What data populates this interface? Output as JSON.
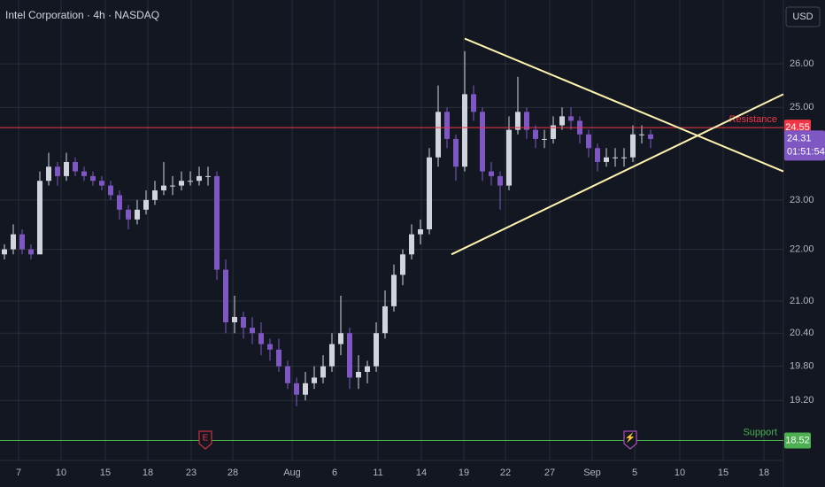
{
  "chart_data": {
    "type": "candlestick",
    "title": "Intel Corporation · 4h · NASDAQ",
    "currency": "USD",
    "log_scale": true,
    "grid": true,
    "up_color": "#d1d4dc",
    "down_color": "#7e57c2",
    "xlim": [
      0,
      88.5
    ],
    "xticks": [
      {
        "value": 2.1,
        "label": "7"
      },
      {
        "value": 6.9,
        "label": "10"
      },
      {
        "value": 11.9,
        "label": "15"
      },
      {
        "value": 16.7,
        "label": "18"
      },
      {
        "value": 21.6,
        "label": "23"
      },
      {
        "value": 26.3,
        "label": "28"
      },
      {
        "value": 33.0,
        "label": "Aug"
      },
      {
        "value": 37.8,
        "label": "6"
      },
      {
        "value": 42.7,
        "label": "11"
      },
      {
        "value": 47.6,
        "label": "14"
      },
      {
        "value": 52.4,
        "label": "19"
      },
      {
        "value": 57.1,
        "label": "22"
      },
      {
        "value": 62.1,
        "label": "27"
      },
      {
        "value": 66.9,
        "label": "Sep"
      },
      {
        "value": 71.7,
        "label": "5"
      },
      {
        "value": 76.8,
        "label": "10"
      },
      {
        "value": 81.7,
        "label": "15"
      },
      {
        "value": 86.3,
        "label": "18"
      }
    ],
    "ylim": [
      18.19,
      27.54
    ],
    "yticks": [
      {
        "value": 26,
        "label": "26.00"
      },
      {
        "value": 25,
        "label": "25.00"
      },
      {
        "value": 23,
        "label": "23.00"
      },
      {
        "value": 22,
        "label": "22.00"
      },
      {
        "value": 21,
        "label": "21.00"
      },
      {
        "value": 20.4,
        "label": "20.40"
      },
      {
        "value": 19.8,
        "label": "19.80"
      },
      {
        "value": 19.2,
        "label": "19.20"
      }
    ],
    "open": [
      21.9,
      22.0,
      22.3,
      22.0,
      21.9,
      23.4,
      23.7,
      23.5,
      23.8,
      23.6,
      23.5,
      23.4,
      23.3,
      23.1,
      22.8,
      22.6,
      22.8,
      23.0,
      23.2,
      23.3,
      23.3,
      23.4,
      23.4,
      23.5,
      23.5,
      21.6,
      20.6,
      20.7,
      20.5,
      20.4,
      20.2,
      20.1,
      19.8,
      19.5,
      19.3,
      19.5,
      19.6,
      19.8,
      20.2,
      20.4,
      19.6,
      19.7,
      19.8,
      20.4,
      20.9,
      21.5,
      21.9,
      22.3,
      22.4,
      23.9,
      24.9,
      24.3,
      23.7,
      25.3,
      24.9,
      23.6,
      23.5,
      23.3,
      24.5,
      24.9,
      24.5,
      24.3,
      24.3,
      24.6,
      24.8,
      24.7,
      24.4,
      24.1,
      23.8,
      23.9,
      23.9,
      23.9,
      24.4,
      24.4
    ],
    "high": [
      22.1,
      22.5,
      22.4,
      22.1,
      23.6,
      24.0,
      23.8,
      24.0,
      23.9,
      23.7,
      23.6,
      23.5,
      23.4,
      23.2,
      22.9,
      23.0,
      23.2,
      23.4,
      23.8,
      23.5,
      23.6,
      23.6,
      23.7,
      23.7,
      23.6,
      21.8,
      21.1,
      20.8,
      20.7,
      20.6,
      20.3,
      20.3,
      19.9,
      19.6,
      19.7,
      19.8,
      20.0,
      20.4,
      21.1,
      20.5,
      20.0,
      19.9,
      20.6,
      21.2,
      21.7,
      22.0,
      22.5,
      22.6,
      24.1,
      25.5,
      25.0,
      24.4,
      26.3,
      25.5,
      25.0,
      23.8,
      23.6,
      24.8,
      25.7,
      25.0,
      24.6,
      24.5,
      24.8,
      25.0,
      25.0,
      24.8,
      24.5,
      24.2,
      24.1,
      24.1,
      24.1,
      24.6,
      24.6,
      24.5
    ],
    "low": [
      21.8,
      21.9,
      21.9,
      21.8,
      21.9,
      23.3,
      23.3,
      23.4,
      23.5,
      23.4,
      23.3,
      23.2,
      23.0,
      22.6,
      22.4,
      22.5,
      22.7,
      22.9,
      23.1,
      23.1,
      23.2,
      23.3,
      23.3,
      23.3,
      21.4,
      20.4,
      20.4,
      20.3,
      20.2,
      20.0,
      19.9,
      19.7,
      19.4,
      19.1,
      19.2,
      19.4,
      19.5,
      19.7,
      20.0,
      19.4,
      19.4,
      19.5,
      19.7,
      20.3,
      20.8,
      21.3,
      21.8,
      22.1,
      22.3,
      23.7,
      24.1,
      23.4,
      23.6,
      24.7,
      23.4,
      23.3,
      22.8,
      23.2,
      24.4,
      24.3,
      24.1,
      24.1,
      24.2,
      24.5,
      24.5,
      24.2,
      23.9,
      23.6,
      23.7,
      23.7,
      23.7,
      23.8,
      24.2,
      24.1
    ],
    "close": [
      22.0,
      22.3,
      22.0,
      21.9,
      23.4,
      23.7,
      23.5,
      23.8,
      23.6,
      23.5,
      23.4,
      23.3,
      23.1,
      22.8,
      22.6,
      22.8,
      23.0,
      23.2,
      23.3,
      23.3,
      23.4,
      23.4,
      23.5,
      23.5,
      21.6,
      20.6,
      20.7,
      20.5,
      20.4,
      20.2,
      20.1,
      19.8,
      19.5,
      19.3,
      19.5,
      19.6,
      19.8,
      20.2,
      20.4,
      19.6,
      19.7,
      19.8,
      20.4,
      20.9,
      21.5,
      21.9,
      22.3,
      22.4,
      23.9,
      24.9,
      24.3,
      23.7,
      25.3,
      24.9,
      23.6,
      23.5,
      23.3,
      24.5,
      24.9,
      24.5,
      24.3,
      24.3,
      24.6,
      24.8,
      24.7,
      24.4,
      24.1,
      23.8,
      23.9,
      23.9,
      23.9,
      24.4,
      24.4,
      24.3
    ],
    "levels": [
      {
        "name": "Resistance",
        "value": 24.55,
        "value_label": "24.55",
        "color": "#f23645"
      },
      {
        "name": "Support",
        "value": 18.52,
        "value_label": "18.52",
        "color": "#4caf50"
      }
    ],
    "last_price": {
      "value": 24.31,
      "value_label": "24.31",
      "countdown": "01:51:54",
      "color": "#7e57c2"
    },
    "trendlines": [
      {
        "x": [
          52.5,
          88.5
        ],
        "y": [
          26.6,
          23.6
        ],
        "color": "#fff3b0"
      },
      {
        "x": [
          51.0,
          88.5
        ],
        "y": [
          21.9,
          25.3
        ],
        "color": "#fff3b0"
      }
    ],
    "events": [
      {
        "label": "E",
        "x": 23.2,
        "color": "#f23645"
      },
      {
        "label": "⚡",
        "x": 71.2,
        "color": "#c759d6"
      }
    ]
  }
}
